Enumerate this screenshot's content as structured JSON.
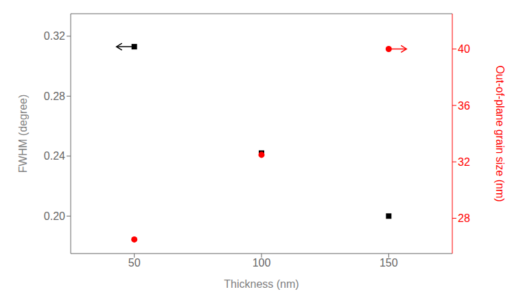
{
  "chart_data": {
    "type": "scatter",
    "x": [
      50,
      100,
      150
    ],
    "xlabel": "Thickness (nm)",
    "ylabel": "FWHM (degree)",
    "y2label": "Out-of-plane grain size (nm)",
    "xlim": [
      25,
      175
    ],
    "xticks": [
      50,
      100,
      150
    ],
    "ylim": [
      0.175,
      0.335
    ],
    "yticks": [
      {
        "value": 0.2,
        "label": "0.20"
      },
      {
        "value": 0.24,
        "label": "0.24"
      },
      {
        "value": 0.28,
        "label": "0.28"
      },
      {
        "value": 0.32,
        "label": "0.32"
      }
    ],
    "y2lim": [
      25.5,
      42.5
    ],
    "y2ticks": [
      28,
      32,
      36,
      40
    ],
    "series": [
      {
        "color": "#000000",
        "marker": "square",
        "values": [
          0.313,
          0.242,
          0.2
        ]
      },
      {
        "color": "#ff0000",
        "marker": "circle",
        "values": [
          26.5,
          32.5,
          40.0
        ],
        "axis": "y2"
      }
    ],
    "annotations": [
      {
        "x_from": 49,
        "x_to": 43,
        "y": 0.313,
        "color": "#000000"
      },
      {
        "x_from": 151,
        "x_to": 157,
        "y": 40.0,
        "color": "#ff0000",
        "axis": "y2"
      }
    ]
  }
}
